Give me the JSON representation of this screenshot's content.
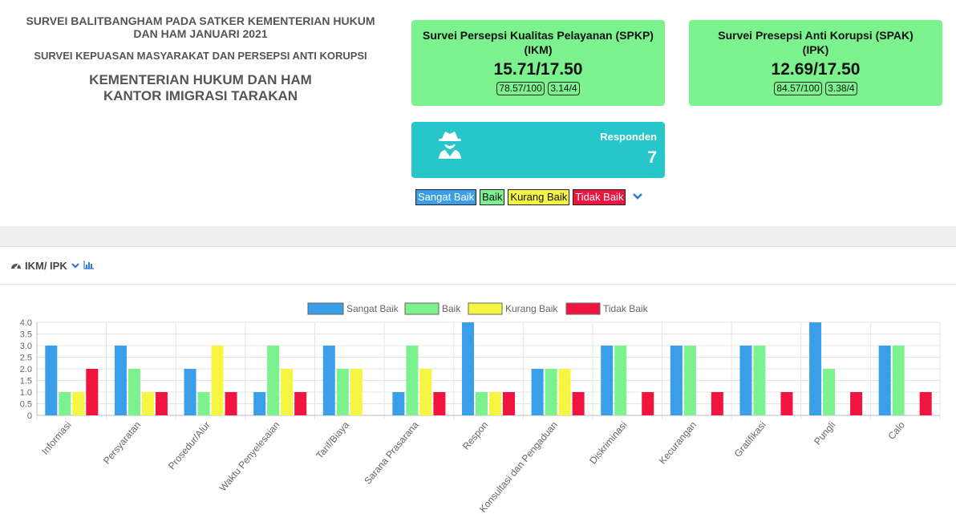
{
  "header": {
    "line1": "SURVEI BALITBANGHAM PADA SATKER KEMENTERIAN HUKUM",
    "line2": "DAN HAM JANUARI 2021",
    "line3": "SURVEI KEPUASAN MASYARAKAT DAN PERSEPSI ANTI KORUPSI",
    "line4": "KEMENTERIAN HUKUM DAN HAM",
    "line5": "KANTOR IMIGRASI TARAKAN"
  },
  "spkp": {
    "title": "Survei Persepsi Kualitas Pelayanan (SPKP)",
    "subtitle": "(IKM)",
    "score": "15.71/17.50",
    "badge1": "78.57/100",
    "badge2": "3.14/4"
  },
  "spak": {
    "title": "Survei Presepsi Anti Korupsi (SPAK)",
    "subtitle": "(IPK)",
    "score": "12.69/17.50",
    "badge1": "84.57/100",
    "badge2": "3.38/4"
  },
  "respondents": {
    "label": "Responden",
    "value": "7",
    "icon": "user-secret-icon"
  },
  "rating_tags": [
    {
      "label": "Sangat Baik",
      "color": "#3a9ee8",
      "text_color": "#ffffff"
    },
    {
      "label": "Baik",
      "color": "#7bf28e",
      "text_color": "#111111"
    },
    {
      "label": "Kurang Baik",
      "color": "#f5f542",
      "text_color": "#111111"
    },
    {
      "label": "Tidak Baik",
      "color": "#f0143f",
      "text_color": "#ffffff"
    }
  ],
  "panel": {
    "title": "IKM/ IPK",
    "icons": [
      "dashboard-icon",
      "chevron-down-icon",
      "bar-chart-icon"
    ]
  },
  "colors": {
    "card_green": "#7bf28e",
    "responden_teal": "#26c6ca",
    "link_blue": "#2b7bd4"
  },
  "chart_data": {
    "type": "bar",
    "categories": [
      "Informasi",
      "Persyaratan",
      "Prosedur/Alur",
      "Waktu Penyelesaian",
      "Tarif/Biaya",
      "Sarana Prasarana",
      "Respon",
      "Konsultasi dan Pengaduan",
      "Diskriminasi",
      "Kecurangan",
      "Gratifikasi",
      "Pungli",
      "Calo"
    ],
    "series": [
      {
        "name": "Sangat Baik",
        "color": "#3a9ee8",
        "values": [
          3,
          3,
          2,
          1,
          3,
          1,
          4,
          2,
          3,
          3,
          3,
          4,
          3
        ]
      },
      {
        "name": "Baik",
        "color": "#7bf28e",
        "values": [
          1,
          2,
          1,
          3,
          2,
          3,
          1,
          2,
          3,
          3,
          3,
          2,
          3
        ]
      },
      {
        "name": "Kurang Baik",
        "color": "#f5f542",
        "values": [
          1,
          1,
          3,
          2,
          2,
          2,
          1,
          2,
          0,
          0,
          0,
          0,
          0
        ]
      },
      {
        "name": "Tidak Baik",
        "color": "#f0143f",
        "values": [
          2,
          1,
          1,
          1,
          0,
          1,
          1,
          1,
          1,
          1,
          1,
          1,
          1
        ]
      }
    ],
    "yticks": [
      "0",
      "0.5",
      "1.0",
      "1.5",
      "2.0",
      "2.5",
      "3.0",
      "3.5",
      "4.0"
    ],
    "ylim": [
      0,
      4
    ],
    "grid": true,
    "legend_position": "top-center"
  }
}
